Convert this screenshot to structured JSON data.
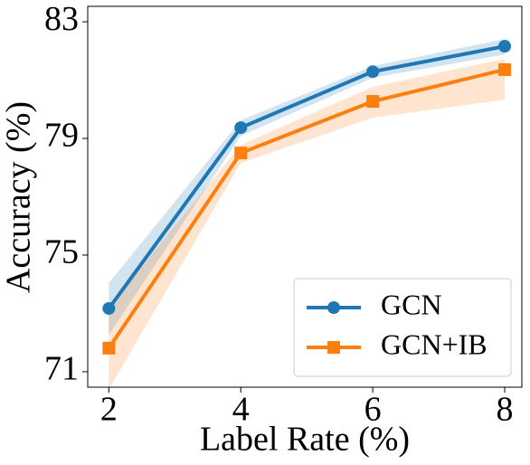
{
  "chart_data": {
    "type": "line",
    "x_label": "Label Rate (%)",
    "y_label": "Accuracy (%)",
    "x": [
      2,
      4,
      6,
      8
    ],
    "series": [
      {
        "name": "GCN",
        "color": "#1f77b4",
        "marker": "circle",
        "values": [
          73.17,
          79.37,
          81.29,
          82.16
        ],
        "lower": [
          72.27,
          79.09,
          81.08,
          81.88
        ],
        "upper": [
          74.04,
          79.62,
          81.48,
          82.41
        ]
      },
      {
        "name": "GCN+IB",
        "color": "#ff7f0e",
        "marker": "square",
        "values": [
          71.81,
          78.5,
          80.27,
          81.36
        ],
        "lower": [
          70.4,
          78.16,
          79.71,
          80.33
        ],
        "upper": [
          73.2,
          78.78,
          80.77,
          81.73
        ]
      }
    ],
    "xlim": [
      1.68,
      8.26
    ],
    "ylim": [
      70.47,
      83.53
    ],
    "xticks": [
      2,
      4,
      6,
      8
    ],
    "yticks": [
      71,
      75,
      79,
      83
    ],
    "legend": "lower right",
    "grid": false
  }
}
